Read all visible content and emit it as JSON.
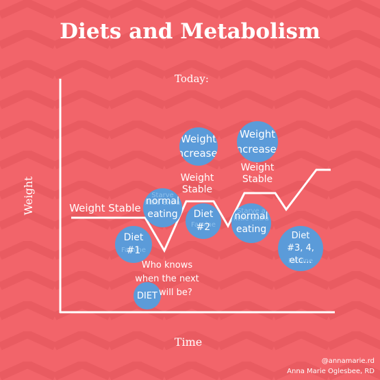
{
  "title": "Diets and Metabolism",
  "axes": {
    "top_label": "Today:",
    "x_label": "Time",
    "y_label": "Weight"
  },
  "labels": {
    "weight_stable_1": "Weight Stable",
    "weight_stable_2": "Weight Stable",
    "weight_stable_3": "Weight Stable",
    "who_knows": "Who knows when the next       will be?"
  },
  "bubbles": {
    "weight_increases_1": "Weight increases",
    "weight_increases_2": "Weight increases",
    "normal_eating_1": "\"normal\" eating",
    "normal_eating_2": "\"normal\" eating",
    "diet_1": "Diet #1",
    "diet_2": "Diet #2",
    "diet_3": "Diet #3, 4, etc...",
    "diet_next": "DIET",
    "ghost_starve_1": "Starve little extra",
    "ghost_starve_2": "Starve a little extra",
    "ghost_famine_1": "Famine",
    "ghost_famine_2": "Famine",
    "ghost_famine_3": "Famine"
  },
  "credit": {
    "handle": "@annamarie.rd",
    "name": "Anna Marie Oglesbee, RD"
  },
  "colors": {
    "background": "#f2646a",
    "bubble": "#5b9bd9",
    "line": "#ffffff"
  }
}
